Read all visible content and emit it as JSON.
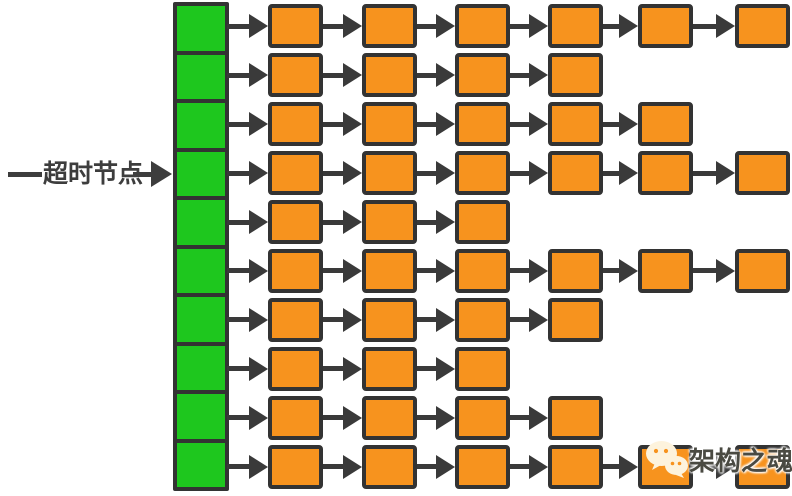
{
  "diagram": {
    "type": "timer-wheel-bucket-list",
    "label": "超时节点",
    "bucket_count": 10,
    "chain_lengths": [
      6,
      4,
      5,
      6,
      3,
      6,
      4,
      3,
      4,
      6
    ],
    "colors": {
      "bucket_fill": "#1ec71e",
      "node_fill": "#f7931e",
      "stroke": "#333333",
      "arrow": "#3a3a3a",
      "label_text": "#3d3d3d"
    }
  },
  "watermark": {
    "text": "架构之魂",
    "icon": "wechat-icon",
    "text_color": "#4a4a42"
  }
}
